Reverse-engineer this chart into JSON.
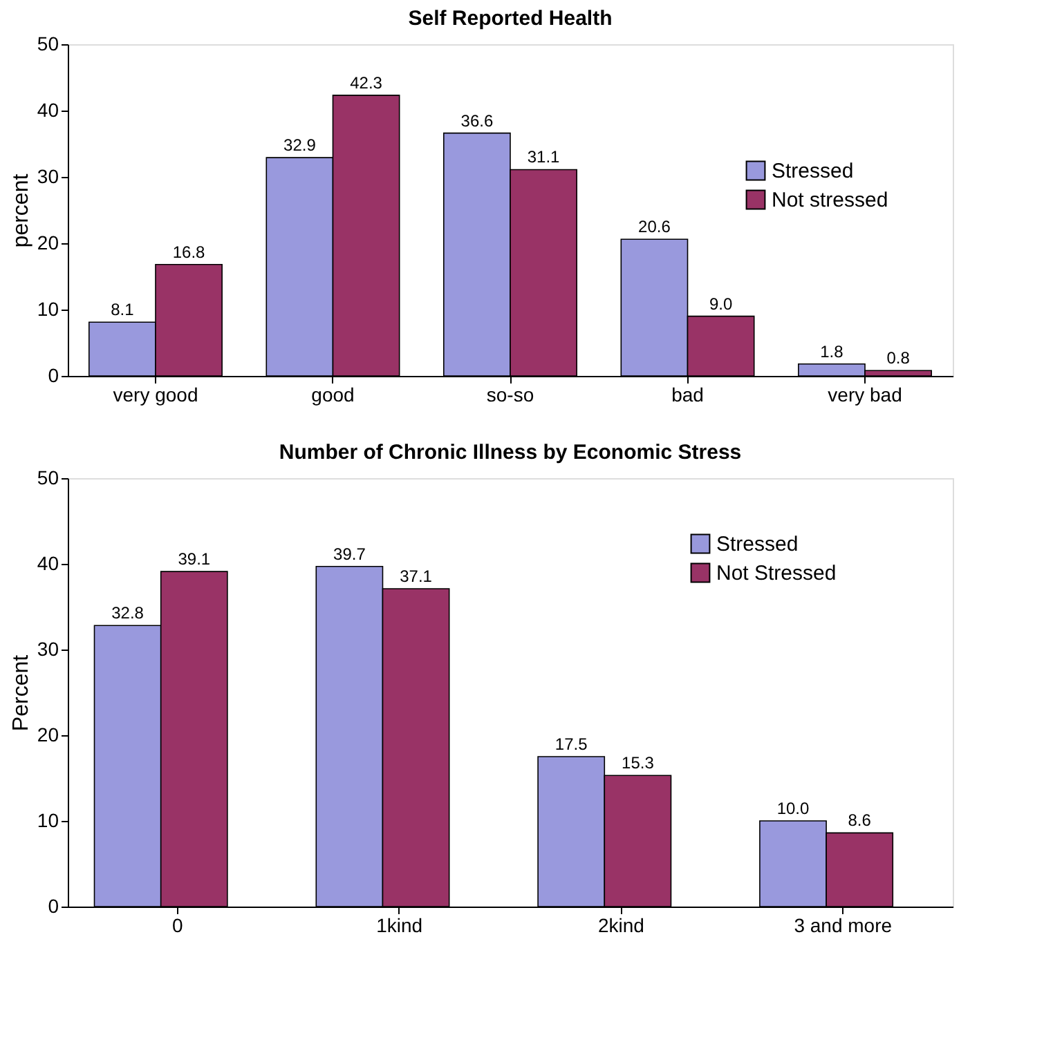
{
  "chart_data": [
    {
      "type": "bar",
      "title": "Self Reported Health",
      "ylabel": "percent",
      "categories": [
        "very good",
        "good",
        "so-so",
        "bad",
        "very bad"
      ],
      "series": [
        {
          "name": "Stressed",
          "color": "#9999dd",
          "values": [
            8.1,
            32.9,
            36.6,
            20.6,
            1.8
          ],
          "value_labels": [
            "8.1",
            "32.9",
            "36.6",
            "20.6",
            "1.8"
          ]
        },
        {
          "name": "Not stressed",
          "color": "#993366",
          "values": [
            16.8,
            42.3,
            31.1,
            9.0,
            0.8
          ],
          "value_labels": [
            "16.8",
            "42.3",
            "31.1",
            "9.0",
            "0.8"
          ]
        }
      ],
      "ylim": [
        0,
        50
      ],
      "yticks": [
        0,
        10,
        20,
        30,
        40,
        50
      ],
      "legend": "right"
    },
    {
      "type": "bar",
      "title": "Number of Chronic Illness by Economic Stress",
      "ylabel": "Percent",
      "categories": [
        "0",
        "1kind",
        "2kind",
        "3 and more"
      ],
      "series": [
        {
          "name": "Stressed",
          "color": "#9999dd",
          "values": [
            32.8,
            39.7,
            17.5,
            10.0
          ],
          "value_labels": [
            "32.8",
            "39.7",
            "17.5",
            "10.0"
          ]
        },
        {
          "name": "Not Stressed",
          "color": "#993366",
          "values": [
            39.1,
            37.1,
            15.3,
            8.6
          ],
          "value_labels": [
            "39.1",
            "37.1",
            "15.3",
            "8.6"
          ]
        }
      ],
      "ylim": [
        0,
        50
      ],
      "yticks": [
        0,
        10,
        20,
        30,
        40,
        50
      ],
      "legend": "top right"
    }
  ]
}
